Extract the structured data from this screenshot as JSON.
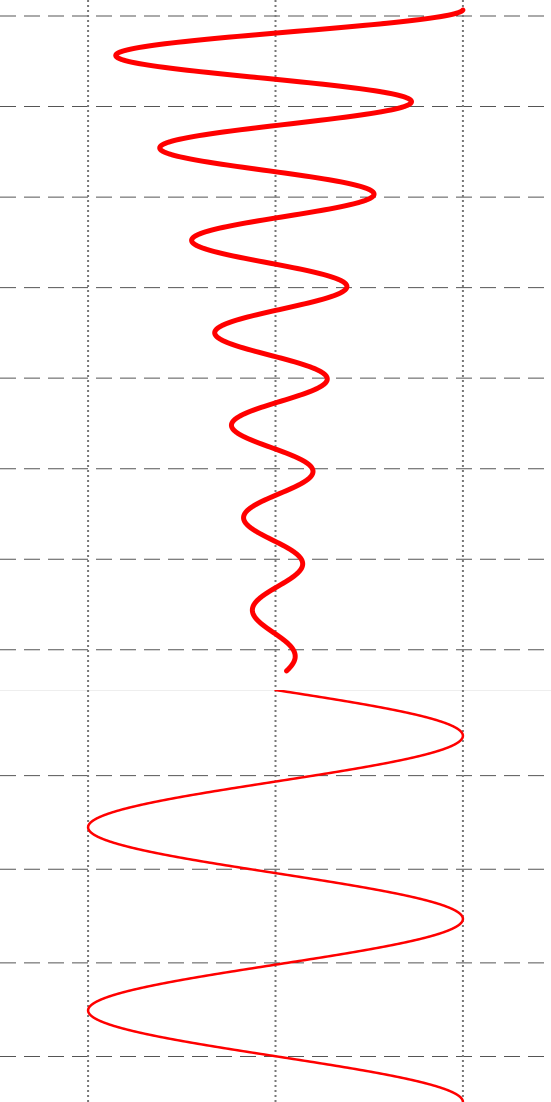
{
  "chart_data": [
    {
      "type": "line",
      "orientation": "vertical",
      "series": [
        {
          "color": "#ff0000",
          "style": "damped-oscillation",
          "center_x": 0,
          "amplitude_start": 1.0,
          "amplitude_end": 0.1,
          "half_cycles": 14.3,
          "y_range": [
            0,
            7.3
          ]
        }
      ],
      "x_grid_values": [
        -1,
        0,
        1
      ],
      "y_grid_values": [
        0,
        1,
        2,
        3,
        4,
        5,
        6,
        7
      ],
      "xlim": [
        -1.47,
        1.47
      ],
      "ylim": [
        0,
        7.4
      ],
      "grid": true
    },
    {
      "type": "line",
      "orientation": "vertical",
      "series": [
        {
          "color": "#ff0000",
          "style": "sine",
          "amplitude": 1.0,
          "phase_start": 0,
          "cycles": 2.25,
          "y_range": [
            0,
            4.4
          ]
        }
      ],
      "x_grid_values": [
        -1,
        0,
        1
      ],
      "y_grid_values": [
        1,
        2,
        3,
        4
      ],
      "xlim": [
        -1.47,
        1.47
      ],
      "ylim": [
        0,
        4.4
      ],
      "grid": true
    }
  ]
}
